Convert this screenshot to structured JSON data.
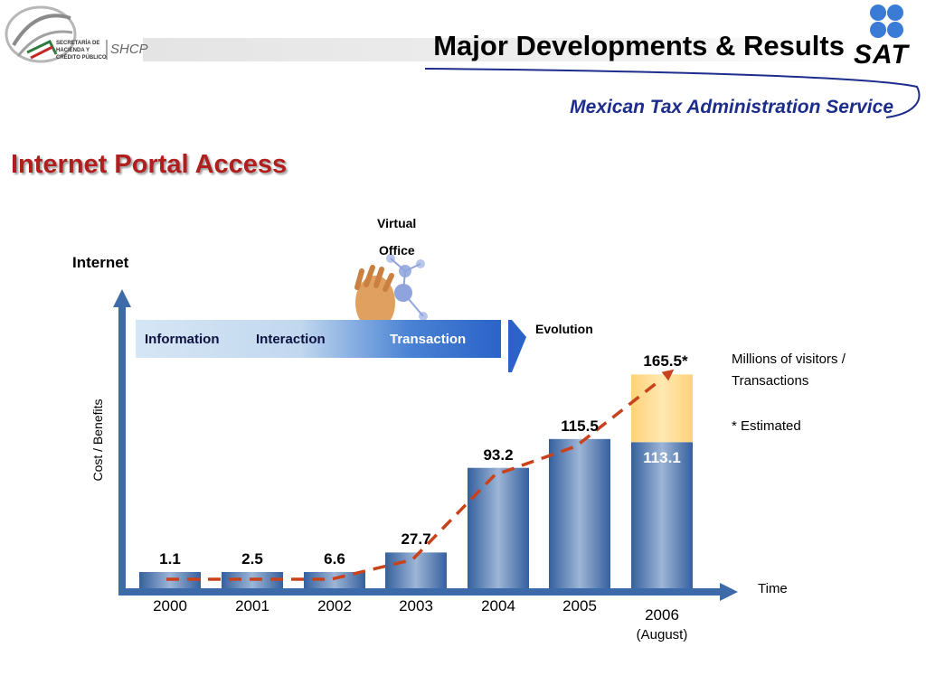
{
  "header": {
    "title": "Major Developments & Results",
    "subtitle": "Mexican Tax Administration Service",
    "org_lines": [
      "SECRETARÍA DE",
      "HACIENDA Y",
      "CRÉDITO PÚBLICO"
    ],
    "org_abbrev": "SHCP",
    "brand": "SAT"
  },
  "section_title": "Internet Portal Access",
  "diagram": {
    "internet_label": "Internet",
    "virtual_office_line1": "Virtual",
    "virtual_office_line2": "Office",
    "stages": [
      "Information",
      "Interaction",
      "Transaction"
    ],
    "evolution_label": "Evolution",
    "y_axis_label": "Cost / Benefits",
    "x_axis_label": "Time"
  },
  "legend": {
    "line1": "Millions of visitors /",
    "line2": "Transactions",
    "note": "* Estimated"
  },
  "colors": {
    "bar_blue": "#3d6aa8",
    "bar_estimate": "#ffd98a",
    "trend": "#c8421c",
    "section_title": "#b01e1e",
    "subtitle": "#1c2d8c"
  },
  "chart_data": {
    "type": "bar",
    "categories": [
      "2000",
      "2001",
      "2002",
      "2003",
      "2004",
      "2005",
      "2006"
    ],
    "category_sublabels": [
      "",
      "",
      "",
      "",
      "",
      "",
      "(August)"
    ],
    "values": [
      1.1,
      2.5,
      6.6,
      27.7,
      93.2,
      115.5,
      113.1
    ],
    "value_labels": [
      "1.1",
      "2.5",
      "6.6",
      "27.7",
      "93.2",
      "115.5",
      "113.1"
    ],
    "estimated_total": {
      "category": "2006",
      "value": 165.5,
      "label": "165.5*"
    },
    "trend_line": true,
    "xlabel": "Time",
    "ylabel": "Cost / Benefits"
  }
}
